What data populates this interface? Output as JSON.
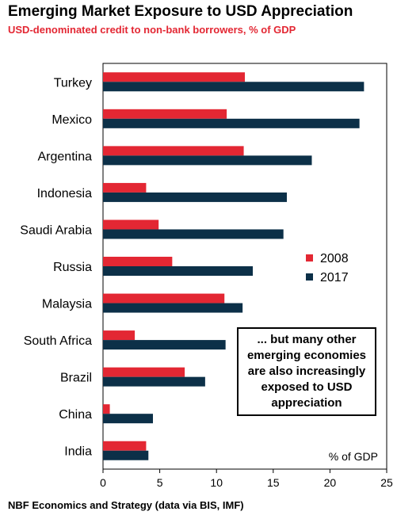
{
  "title": "Emerging Market Exposure to USD Appreciation",
  "subtitle": "USD-denominated credit to non-bank borrowers, % of GDP",
  "source": "NBF Economics and Strategy (data via BIS, IMF)",
  "annotation": "... but many other emerging economies are also increasingly exposed to USD appreciation",
  "colors": {
    "2008": "#e32733",
    "2017": "#0c3048"
  },
  "chart_data": {
    "type": "bar",
    "orientation": "horizontal",
    "categories": [
      "Turkey",
      "Mexico",
      "Argentina",
      "Indonesia",
      "Saudi Arabia",
      "Russia",
      "Malaysia",
      "South Africa",
      "Brazil",
      "China",
      "India"
    ],
    "series": [
      {
        "name": "2008",
        "values": [
          12.5,
          10.9,
          12.4,
          3.8,
          4.9,
          6.1,
          10.7,
          2.8,
          7.2,
          0.6,
          3.8
        ]
      },
      {
        "name": "2017",
        "values": [
          23.0,
          22.6,
          18.4,
          16.2,
          15.9,
          13.2,
          12.3,
          10.8,
          9.0,
          4.4,
          4.0
        ]
      }
    ],
    "xlim": [
      0,
      25
    ],
    "xticks": [
      0,
      5,
      10,
      15,
      20,
      25
    ],
    "xlabel": "",
    "ylabel": "",
    "unit_label": "% of GDP",
    "legend_position": "right",
    "grid": false
  }
}
